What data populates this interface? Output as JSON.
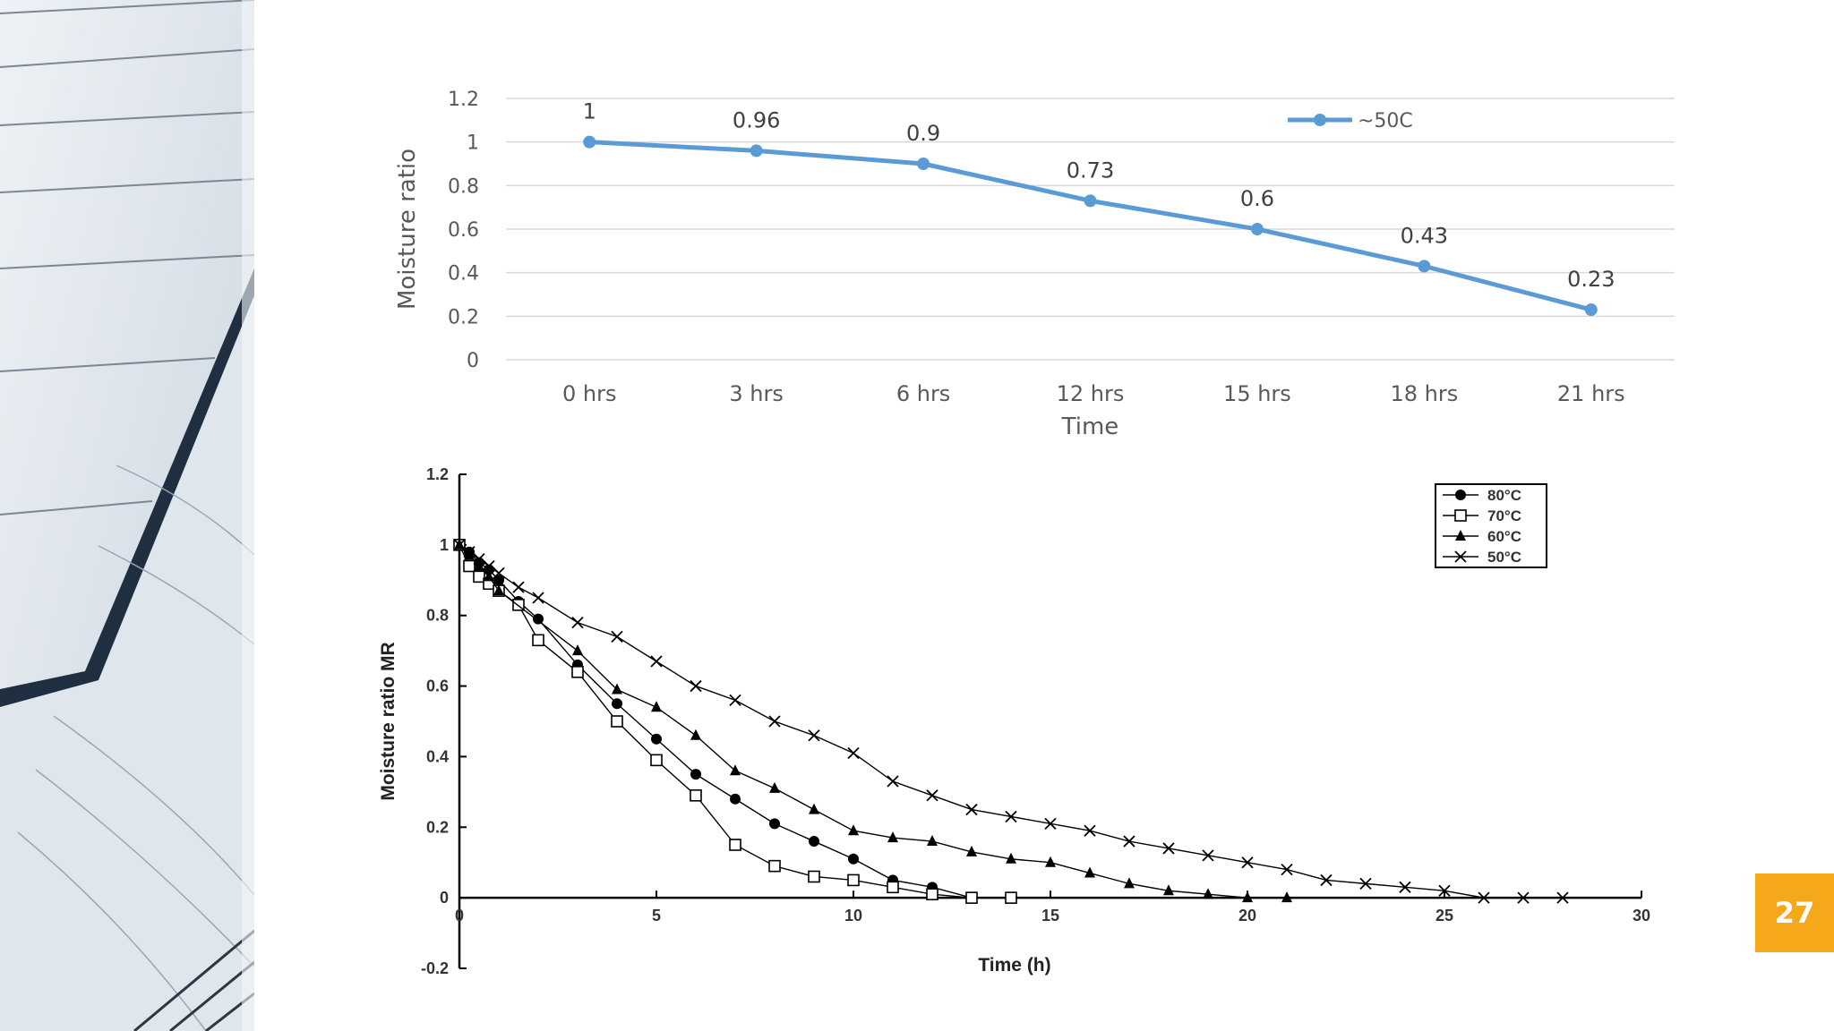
{
  "slide": {
    "page_number": "27",
    "accent_color": "#f6a81b"
  },
  "chart_data": [
    {
      "type": "line",
      "title": "",
      "xlabel": "Time",
      "ylabel": "Moisture ratio",
      "categories": [
        "0 hrs",
        "3 hrs",
        "6 hrs",
        "12 hrs",
        "15 hrs",
        "18 hrs",
        "21 hrs"
      ],
      "series": [
        {
          "name": "~50C",
          "values": [
            1,
            0.96,
            0.9,
            0.73,
            0.6,
            0.43,
            0.23
          ],
          "color": "#5b9bd5"
        }
      ],
      "data_labels": [
        "1",
        "0.96",
        "0.9",
        "0.73",
        "0.6",
        "0.43",
        "0.23"
      ],
      "ylim": [
        0,
        1.2
      ],
      "yticks": [
        "0",
        "0.2",
        "0.4",
        "0.6",
        "0.8",
        "1",
        "1.2"
      ],
      "grid": true,
      "legend": "top-right"
    },
    {
      "type": "scatter",
      "title": "",
      "xlabel": "Time (h)",
      "ylabel": "Moisture ratio MR",
      "xlim": [
        0,
        30
      ],
      "ylim": [
        -0.2,
        1.2
      ],
      "xticks": [
        "0",
        "5",
        "10",
        "15",
        "20",
        "25",
        "30"
      ],
      "yticks": [
        "-0.2",
        "0",
        "0.2",
        "0.4",
        "0.6",
        "0.8",
        "1",
        "1.2"
      ],
      "grid": false,
      "legend": "top-right",
      "series": [
        {
          "name": "80°C",
          "marker": "filled-circle",
          "x": [
            0,
            0.25,
            0.5,
            0.75,
            1,
            1.5,
            2,
            3,
            4,
            5,
            6,
            7,
            8,
            9,
            10,
            11,
            12,
            13
          ],
          "y": [
            1,
            0.98,
            0.95,
            0.93,
            0.9,
            0.84,
            0.79,
            0.66,
            0.55,
            0.45,
            0.35,
            0.28,
            0.21,
            0.16,
            0.11,
            0.05,
            0.03,
            0
          ]
        },
        {
          "name": "70°C",
          "marker": "open-square",
          "x": [
            0,
            0.25,
            0.5,
            0.75,
            1,
            1.5,
            2,
            3,
            4,
            5,
            6,
            7,
            8,
            9,
            10,
            11,
            12,
            13,
            14
          ],
          "y": [
            1,
            0.94,
            0.91,
            0.89,
            0.87,
            0.83,
            0.73,
            0.64,
            0.5,
            0.39,
            0.29,
            0.15,
            0.09,
            0.06,
            0.05,
            0.03,
            0.01,
            0,
            0
          ]
        },
        {
          "name": "60°C",
          "marker": "filled-triangle",
          "x": [
            0,
            0.25,
            0.5,
            0.75,
            1,
            3,
            4,
            5,
            6,
            7,
            8,
            9,
            10,
            11,
            12,
            13,
            14,
            15,
            16,
            17,
            18,
            19,
            20,
            21
          ],
          "y": [
            1,
            0.97,
            0.94,
            0.91,
            0.87,
            0.7,
            0.59,
            0.54,
            0.46,
            0.36,
            0.31,
            0.25,
            0.19,
            0.17,
            0.16,
            0.13,
            0.11,
            0.1,
            0.07,
            0.04,
            0.02,
            0.01,
            0,
            0
          ]
        },
        {
          "name": "50°C",
          "marker": "cross",
          "x": [
            0,
            0.25,
            0.5,
            0.75,
            1,
            1.5,
            2,
            3,
            4,
            5,
            6,
            7,
            8,
            9,
            10,
            11,
            12,
            13,
            14,
            15,
            16,
            17,
            18,
            19,
            20,
            21,
            22,
            23,
            24,
            25,
            26,
            27,
            28
          ],
          "y": [
            1,
            0.98,
            0.96,
            0.94,
            0.92,
            0.88,
            0.85,
            0.78,
            0.74,
            0.67,
            0.6,
            0.56,
            0.5,
            0.46,
            0.41,
            0.33,
            0.29,
            0.25,
            0.23,
            0.21,
            0.19,
            0.16,
            0.14,
            0.12,
            0.1,
            0.08,
            0.05,
            0.04,
            0.03,
            0.02,
            0,
            0,
            0
          ]
        }
      ]
    }
  ]
}
